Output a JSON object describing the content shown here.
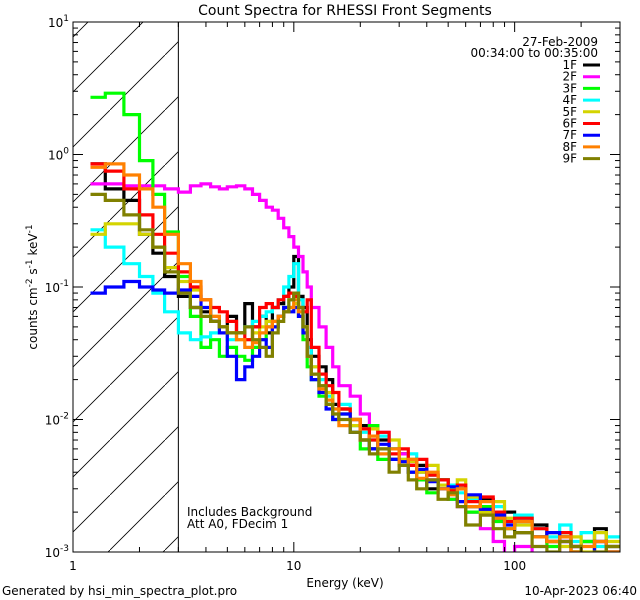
{
  "chart_data": {
    "type": "line",
    "title": "Count Spectra for RHESSI Front Segments",
    "xlabel": "Energy (keV)",
    "ylabel": {
      "main": "counts cm",
      "e1": "-2",
      "s": " s",
      "e2": "-1",
      "k": " keV",
      "e3": "-1"
    },
    "xscale": "log",
    "yscale": "log",
    "xlim": [
      1,
      300
    ],
    "ylim": [
      0.001,
      10
    ],
    "x_ticks": [
      "1",
      "10",
      "100"
    ],
    "y_tick_base": "10",
    "y_tick_exps": [
      "1",
      "0",
      "-1",
      "-2",
      "-3"
    ],
    "y_tick_values": [
      10,
      1,
      0.1,
      0.01,
      0.001
    ],
    "x_tick_values": [
      1,
      10,
      100
    ],
    "shaded_region_keV": [
      1,
      3
    ],
    "annotations": [
      "Includes Background",
      "Att A0, FDecim 1"
    ],
    "legend": {
      "placement": "top-right",
      "date": "27-Feb-2009",
      "time_range": "00:34:00 to 00:35:00"
    },
    "energy_edges_keV": [
      1.2,
      1.4,
      1.7,
      2.0,
      2.3,
      2.6,
      3.0,
      3.4,
      3.8,
      4.2,
      4.6,
      5.0,
      5.5,
      6.0,
      6.5,
      7.0,
      7.5,
      8.0,
      8.5,
      9.0,
      9.5,
      10,
      10.5,
      11,
      11.5,
      12,
      13,
      14,
      15,
      16,
      18,
      20,
      22,
      24,
      27,
      30,
      33,
      36,
      40,
      45,
      50,
      55,
      60,
      70,
      80,
      90,
      100,
      120,
      140,
      160,
      180,
      200,
      230,
      260,
      300
    ],
    "series": [
      {
        "name": "1F",
        "color": "#000000",
        "values": [
          0.85,
          0.55,
          0.45,
          0.25,
          0.18,
          0.12,
          0.085,
          0.07,
          0.065,
          0.055,
          0.05,
          0.06,
          0.045,
          0.075,
          0.05,
          0.06,
          0.045,
          0.07,
          0.075,
          0.085,
          0.1,
          0.17,
          0.085,
          0.07,
          0.04,
          0.03,
          0.025,
          0.02,
          0.013,
          0.012,
          0.01,
          0.009,
          0.006,
          0.007,
          0.005,
          0.0055,
          0.004,
          0.0045,
          0.003,
          0.0035,
          0.0028,
          0.003,
          0.0022,
          0.0025,
          0.0018,
          0.002,
          0.0014,
          0.0016,
          0.0012,
          0.0013,
          0.001,
          0.0012,
          0.0015,
          0.0011
        ]
      },
      {
        "name": "2F",
        "color": "#ff00ff",
        "values": [
          0.6,
          0.6,
          0.58,
          0.58,
          0.58,
          0.55,
          0.52,
          0.58,
          0.6,
          0.57,
          0.55,
          0.57,
          0.58,
          0.55,
          0.5,
          0.45,
          0.4,
          0.38,
          0.33,
          0.28,
          0.24,
          0.2,
          0.17,
          0.13,
          0.1,
          0.07,
          0.05,
          0.035,
          0.025,
          0.018,
          0.015,
          0.011,
          0.009,
          0.008,
          0.006,
          0.0055,
          0.0045,
          0.004,
          0.0035,
          0.003,
          0.0025,
          0.0022,
          0.002,
          0.0015,
          0.0012,
          0.0009,
          0.0011,
          0.0008,
          0.0006,
          0.0012,
          0.0009,
          0.0007,
          0.0009,
          0.0008
        ]
      },
      {
        "name": "3F",
        "color": "#00ff00",
        "values": [
          2.7,
          2.9,
          2.0,
          0.9,
          0.5,
          0.26,
          0.12,
          0.06,
          0.035,
          0.04,
          0.03,
          0.035,
          0.03,
          0.028,
          0.035,
          0.04,
          0.05,
          0.055,
          0.06,
          0.07,
          0.08,
          0.09,
          0.06,
          0.04,
          0.025,
          0.02,
          0.015,
          0.013,
          0.01,
          0.011,
          0.008,
          0.006,
          0.009,
          0.005,
          0.006,
          0.0045,
          0.005,
          0.0035,
          0.0028,
          0.0035,
          0.0025,
          0.0032,
          0.002,
          0.0022,
          0.0017,
          0.0015,
          0.0018,
          0.0013,
          0.0011,
          0.0014,
          0.001,
          0.0012,
          0.0009,
          0.001
        ]
      },
      {
        "name": "4F",
        "color": "#00ffff",
        "values": [
          0.27,
          0.2,
          0.15,
          0.12,
          0.09,
          0.065,
          0.045,
          0.04,
          0.042,
          0.045,
          0.05,
          0.04,
          0.045,
          0.05,
          0.055,
          0.06,
          0.065,
          0.07,
          0.08,
          0.1,
          0.12,
          0.15,
          0.08,
          0.05,
          0.035,
          0.025,
          0.02,
          0.015,
          0.012,
          0.013,
          0.009,
          0.008,
          0.007,
          0.0075,
          0.006,
          0.005,
          0.0055,
          0.004,
          0.0038,
          0.003,
          0.0032,
          0.0028,
          0.0025,
          0.002,
          0.0022,
          0.0017,
          0.0019,
          0.0015,
          0.0013,
          0.0016,
          0.0012,
          0.0014,
          0.0011,
          0.0013
        ]
      },
      {
        "name": "5F",
        "color": "#d4d400",
        "values": [
          0.25,
          0.3,
          0.3,
          0.25,
          0.2,
          0.14,
          0.11,
          0.095,
          0.08,
          0.06,
          0.05,
          0.045,
          0.04,
          0.04,
          0.045,
          0.05,
          0.055,
          0.05,
          0.06,
          0.065,
          0.07,
          0.075,
          0.06,
          0.05,
          0.03,
          0.025,
          0.018,
          0.016,
          0.011,
          0.012,
          0.009,
          0.007,
          0.0085,
          0.006,
          0.007,
          0.005,
          0.0048,
          0.004,
          0.0045,
          0.0032,
          0.003,
          0.0035,
          0.0026,
          0.002,
          0.0024,
          0.0018,
          0.0016,
          0.0013,
          0.0014,
          0.0011,
          0.0013,
          0.001,
          0.0014,
          0.0012
        ]
      },
      {
        "name": "6F",
        "color": "#ff0000",
        "values": [
          0.85,
          0.75,
          0.55,
          0.35,
          0.25,
          0.18,
          0.13,
          0.1,
          0.08,
          0.07,
          0.065,
          0.055,
          0.045,
          0.04,
          0.05,
          0.07,
          0.075,
          0.07,
          0.08,
          0.085,
          0.09,
          0.085,
          0.07,
          0.065,
          0.08,
          0.035,
          0.022,
          0.018,
          0.016,
          0.012,
          0.01,
          0.0085,
          0.007,
          0.008,
          0.0055,
          0.006,
          0.0045,
          0.005,
          0.0038,
          0.0035,
          0.0029,
          0.0032,
          0.0024,
          0.0026,
          0.002,
          0.0017,
          0.0018,
          0.0015,
          0.0012,
          0.0014,
          0.0011,
          0.0009,
          0.0012,
          0.001
        ]
      },
      {
        "name": "7F",
        "color": "#0000ff",
        "values": [
          0.09,
          0.1,
          0.11,
          0.1,
          0.095,
          0.09,
          0.095,
          0.085,
          0.07,
          0.055,
          0.045,
          0.03,
          0.02,
          0.025,
          0.03,
          0.04,
          0.035,
          0.05,
          0.06,
          0.07,
          0.065,
          0.07,
          0.06,
          0.045,
          0.03,
          0.02,
          0.016,
          0.012,
          0.01,
          0.011,
          0.008,
          0.007,
          0.006,
          0.0065,
          0.005,
          0.0048,
          0.004,
          0.0042,
          0.0034,
          0.003,
          0.0031,
          0.0024,
          0.0027,
          0.0021,
          0.0019,
          0.0016,
          0.0017,
          0.0013,
          0.0014,
          0.0012,
          0.0011,
          0.0009,
          0.0012,
          0.001
        ]
      },
      {
        "name": "8F",
        "color": "#ff8000",
        "values": [
          0.8,
          0.85,
          0.7,
          0.55,
          0.4,
          0.25,
          0.15,
          0.11,
          0.08,
          0.06,
          0.05,
          0.045,
          0.04,
          0.035,
          0.038,
          0.045,
          0.05,
          0.055,
          0.06,
          0.065,
          0.07,
          0.08,
          0.065,
          0.05,
          0.03,
          0.022,
          0.017,
          0.014,
          0.012,
          0.009,
          0.01,
          0.007,
          0.0075,
          0.0055,
          0.006,
          0.0045,
          0.005,
          0.0036,
          0.004,
          0.003,
          0.0027,
          0.003,
          0.0022,
          0.0024,
          0.0018,
          0.0015,
          0.0017,
          0.0013,
          0.0012,
          0.0013,
          0.001,
          0.0011,
          0.0012,
          0.001
        ]
      },
      {
        "name": "9F",
        "color": "#808000",
        "values": [
          0.5,
          0.45,
          0.35,
          0.27,
          0.2,
          0.13,
          0.09,
          0.07,
          0.06,
          0.055,
          0.05,
          0.045,
          0.045,
          0.05,
          0.04,
          0.035,
          0.03,
          0.045,
          0.055,
          0.065,
          0.08,
          0.09,
          0.07,
          0.05,
          0.03,
          0.022,
          0.018,
          0.013,
          0.011,
          0.01,
          0.008,
          0.007,
          0.0055,
          0.006,
          0.004,
          0.0045,
          0.0035,
          0.003,
          0.0035,
          0.0025,
          0.0028,
          0.0022,
          0.0016,
          0.0019,
          0.0015,
          0.0013,
          0.0014,
          0.0011,
          0.001,
          0.0012,
          0.0011,
          0.0009,
          0.001,
          0.0011
        ]
      }
    ]
  },
  "footer": {
    "generated_by": "Generated by hsi_min_spectra_plot.pro",
    "timestamp": "10-Apr-2023 06:40"
  }
}
